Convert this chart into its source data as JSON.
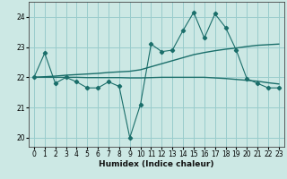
{
  "xlabel": "Humidex (Indice chaleur)",
  "bg_color": "#cce8e4",
  "grid_color": "#99cccc",
  "line_color": "#1a6e6a",
  "x_data": [
    0,
    1,
    2,
    3,
    4,
    5,
    6,
    7,
    8,
    9,
    10,
    11,
    12,
    13,
    14,
    15,
    16,
    17,
    18,
    19,
    20,
    21,
    22,
    23
  ],
  "y_main": [
    22.0,
    22.8,
    21.8,
    22.0,
    21.85,
    21.65,
    21.65,
    21.85,
    21.7,
    20.0,
    21.1,
    23.1,
    22.85,
    22.9,
    23.55,
    24.15,
    23.3,
    24.1,
    23.65,
    22.9,
    21.95,
    21.8,
    21.65,
    21.65
  ],
  "y_trend1": [
    22.0,
    22.02,
    22.04,
    22.07,
    22.09,
    22.11,
    22.13,
    22.16,
    22.18,
    22.2,
    22.25,
    22.35,
    22.45,
    22.55,
    22.65,
    22.75,
    22.82,
    22.88,
    22.93,
    22.97,
    23.02,
    23.06,
    23.08,
    23.1
  ],
  "y_trend2": [
    22.0,
    22.0,
    22.0,
    22.0,
    22.0,
    21.99,
    21.99,
    21.99,
    21.99,
    21.98,
    21.98,
    21.99,
    22.0,
    22.0,
    22.0,
    22.0,
    22.0,
    21.98,
    21.96,
    21.93,
    21.9,
    21.87,
    21.82,
    21.78
  ],
  "ylim": [
    19.7,
    24.5
  ],
  "xlim": [
    -0.5,
    23.5
  ],
  "yticks": [
    20,
    21,
    22,
    23,
    24
  ],
  "xticks": [
    0,
    1,
    2,
    3,
    4,
    5,
    6,
    7,
    8,
    9,
    10,
    11,
    12,
    13,
    14,
    15,
    16,
    17,
    18,
    19,
    20,
    21,
    22,
    23
  ]
}
